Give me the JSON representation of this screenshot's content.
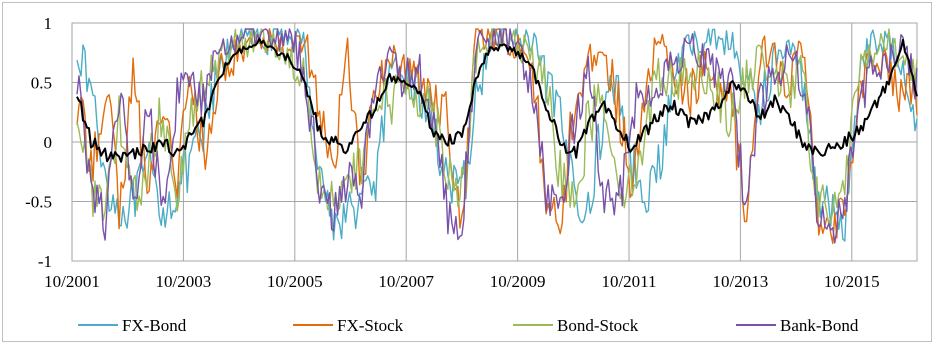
{
  "chart_data": {
    "type": "line",
    "title": "",
    "xlabel": "",
    "ylabel": "",
    "x_start": "10/2001",
    "x_end": "06/2016",
    "x_ticks": [
      "10/2001",
      "10/2003",
      "10/2005",
      "10/2007",
      "10/2009",
      "10/2011",
      "10/2013",
      "10/2015"
    ],
    "y_ticks": [
      "1",
      "0.5",
      "0",
      "-0.5",
      "-1"
    ],
    "ylim": [
      -1,
      1
    ],
    "grid": "both",
    "legend_position": "bottom",
    "series": [
      {
        "name": "FX-Bond",
        "color": "#4bacc6",
        "values": [
          0.8,
          0.45,
          -0.3,
          -0.6,
          -0.5,
          -0.2,
          -0.6,
          -0.4,
          -0.2,
          0.1,
          0.6,
          0.85,
          0.9,
          0.85,
          0.88,
          0.9,
          0.8,
          -0.2,
          -0.7,
          -0.6,
          -0.5,
          -0.3,
          0.5,
          0.6,
          0.4,
          0.2,
          -0.3,
          -0.5,
          0.3,
          0.9,
          0.88,
          0.85,
          0.8,
          0.5,
          0.1,
          -0.4,
          -0.6,
          0.3,
          0.5,
          -0.2,
          -0.4,
          -0.2,
          0.6,
          0.8,
          0.85,
          0.9,
          0.8,
          0.5,
          0.3,
          0.7,
          0.8,
          0.5,
          -0.4,
          -0.6,
          -0.7,
          0.7,
          0.85,
          0.8,
          0.7,
          0.2
        ]
      },
      {
        "name": "FX-Stock",
        "color": "#e36c0a",
        "values": [
          0.3,
          -0.2,
          0.5,
          -0.6,
          0.6,
          -0.5,
          0.4,
          -0.3,
          0.5,
          -0.2,
          0.6,
          0.7,
          0.8,
          0.9,
          0.85,
          0.8,
          0.9,
          0.3,
          -0.3,
          0.8,
          -0.4,
          0.5,
          0.7,
          0.6,
          0.5,
          0.4,
          0.3,
          -0.8,
          0.9,
          0.85,
          0.9,
          0.8,
          0.6,
          -0.5,
          -0.7,
          0.4,
          0.7,
          0.8,
          0.3,
          -0.5,
          0.5,
          0.9,
          0.5,
          0.4,
          0.6,
          0.5,
          0.3,
          -0.6,
          0.8,
          0.7,
          0.5,
          0.8,
          -0.7,
          -0.8,
          -0.4,
          0.5,
          0.7,
          0.6,
          0.4,
          0.3
        ]
      },
      {
        "name": "Bond-Stock",
        "color": "#9bbb59",
        "values": [
          0.3,
          -0.4,
          -0.6,
          0.2,
          -0.5,
          -0.2,
          0.3,
          -0.4,
          0.2,
          0.5,
          0.7,
          0.8,
          0.85,
          0.9,
          0.8,
          0.7,
          0.6,
          -0.3,
          -0.5,
          -0.4,
          -0.2,
          0.4,
          0.3,
          0.5,
          0.4,
          0.3,
          -0.2,
          -0.4,
          0.7,
          0.85,
          0.85,
          0.8,
          0.7,
          0.4,
          -0.3,
          -0.4,
          0.2,
          0.4,
          -0.3,
          -0.4,
          0.2,
          0.6,
          0.5,
          0.6,
          0.6,
          0.4,
          0.2,
          0.5,
          0.7,
          0.6,
          0.4,
          0.6,
          -0.5,
          -0.6,
          -0.3,
          0.6,
          0.8,
          0.85,
          0.7,
          0.6
        ]
      },
      {
        "name": "Bank-Bond",
        "color": "#7851a9",
        "values": [
          0.5,
          -0.3,
          -0.7,
          0.4,
          -0.6,
          0.3,
          -0.5,
          0.4,
          0.5,
          0.3,
          0.8,
          0.85,
          0.9,
          0.88,
          0.85,
          0.9,
          0.6,
          -0.4,
          -0.6,
          -0.3,
          -0.4,
          0.6,
          0.7,
          0.5,
          0.6,
          0.2,
          -0.6,
          -0.8,
          0.8,
          0.88,
          0.86,
          0.8,
          0.4,
          -0.5,
          -0.6,
          0.2,
          0.6,
          -0.4,
          -0.6,
          0.3,
          0.4,
          0.5,
          0.7,
          0.8,
          0.7,
          0.6,
          0.4,
          -0.5,
          0.4,
          0.5,
          0.7,
          0.5,
          -0.6,
          -0.8,
          -0.5,
          0.4,
          0.6,
          0.7,
          0.8,
          0.5
        ]
      },
      {
        "name": "",
        "color": "#000000",
        "values": [
          0.4,
          0.0,
          -0.1,
          -0.15,
          -0.1,
          -0.05,
          0.0,
          -0.1,
          0.05,
          0.2,
          0.55,
          0.75,
          0.8,
          0.85,
          0.75,
          0.7,
          0.5,
          0.1,
          0.0,
          -0.05,
          0.1,
          0.3,
          0.55,
          0.5,
          0.4,
          0.1,
          0.0,
          0.05,
          0.5,
          0.8,
          0.8,
          0.75,
          0.6,
          0.3,
          0.0,
          -0.1,
          0.15,
          0.3,
          0.1,
          -0.05,
          0.1,
          0.25,
          0.3,
          0.15,
          0.2,
          0.3,
          0.5,
          0.4,
          0.2,
          0.35,
          0.2,
          0.0,
          -0.1,
          -0.05,
          0.0,
          0.1,
          0.3,
          0.5,
          0.85,
          0.4
        ]
      }
    ]
  },
  "legend": {
    "items": [
      {
        "label": "FX-Bond",
        "color": "#4bacc6"
      },
      {
        "label": "FX-Stock",
        "color": "#e36c0a"
      },
      {
        "label": "Bond-Stock",
        "color": "#9bbb59"
      },
      {
        "label": "Bank-Bond",
        "color": "#7851a9"
      }
    ]
  }
}
